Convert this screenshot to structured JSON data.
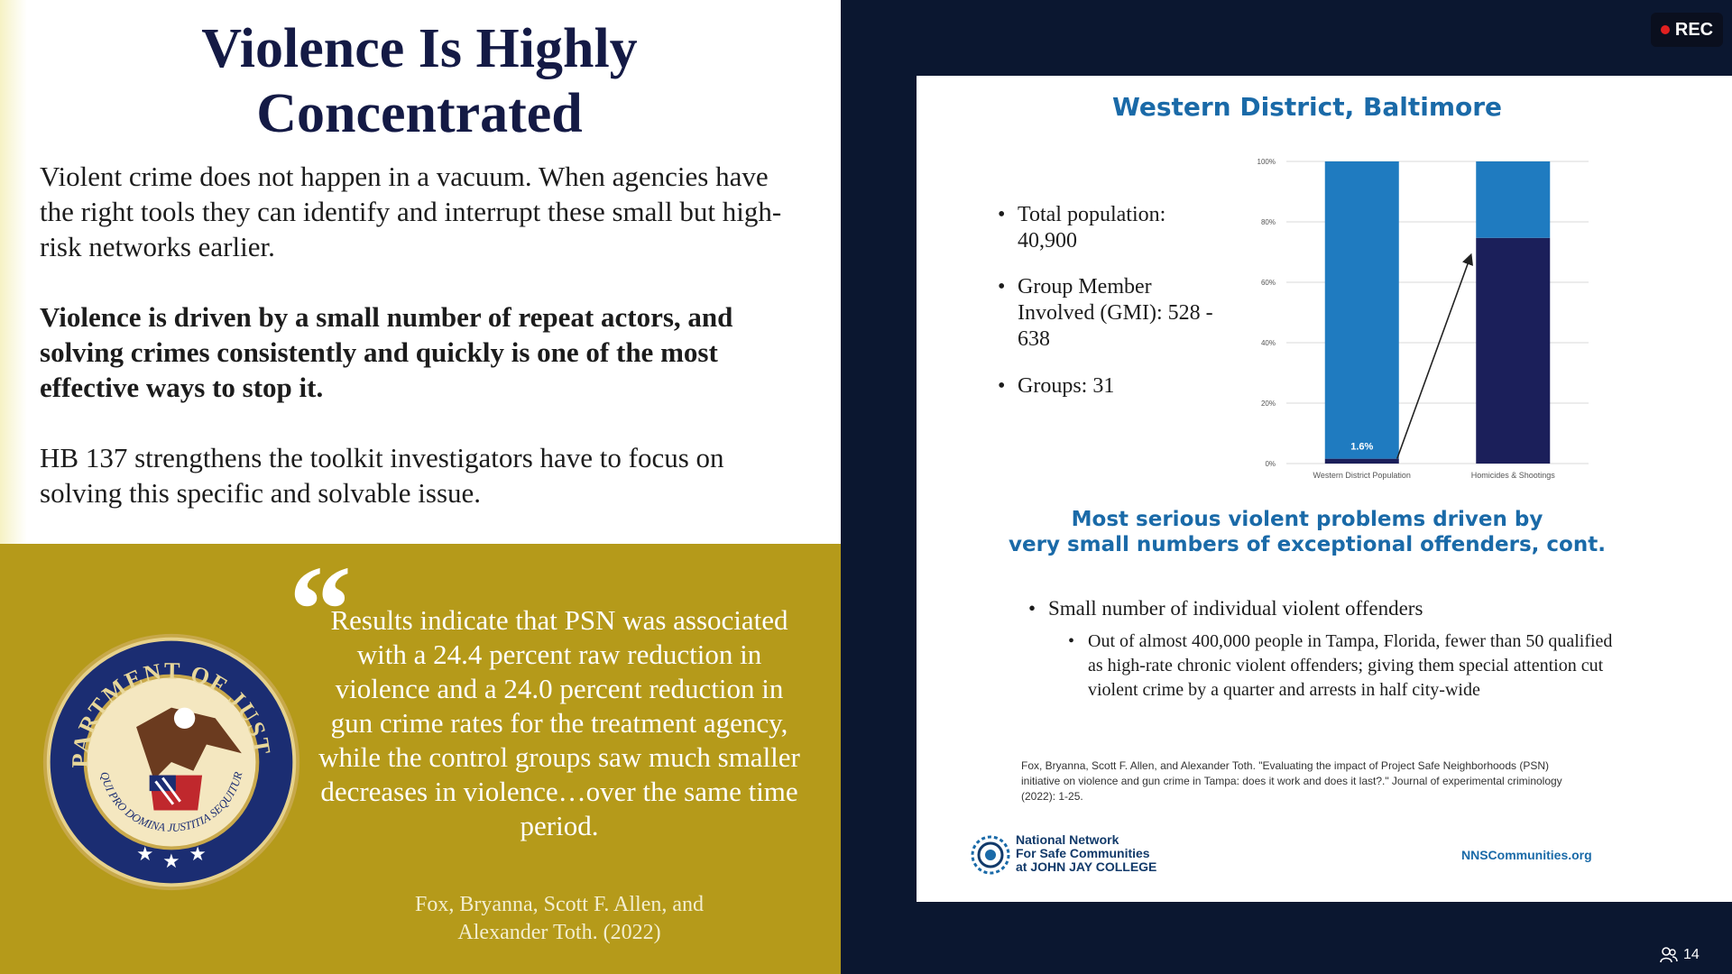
{
  "left_slide": {
    "title": "Violence Is Highly Concentrated",
    "paragraph1": "Violent crime does not happen in a vacuum. When agencies have the right tools they can identify and interrupt these small but high-risk networks earlier.",
    "paragraph2": "Violence is driven by a small number of repeat actors, and solving crimes consistently and quickly is one of the most effective ways to stop it.",
    "paragraph3": "HB 137 strengthens the toolkit investigators have to focus on solving this specific and solvable issue.",
    "quote_mark": "“",
    "quote": "Results indicate that PSN was associated with a 24.4 percent raw reduction in violence and a 24.0 percent reduction in gun crime rates for the treatment agency, while the control groups saw much smaller decreases in violence…over the same time period.",
    "citation": "Fox, Bryanna, Scott F. Allen, and Alexander Toth. (2022)",
    "seal_text": "DEPARTMENT OF JUSTICE",
    "seal_motto": "QUI PRO DOMINA JUSTITIA SEQUITUR"
  },
  "recording": {
    "label": "REC"
  },
  "right_slide": {
    "title": "Western District, Baltimore",
    "stats": [
      "Total population: 40,900",
      "Group Member Involved (GMI): 528 - 638",
      "Groups: 31"
    ],
    "subtitle_line1": "Most serious violent problems driven by",
    "subtitle_line2": "very small numbers of exceptional offenders, cont.",
    "bullet_main": "Small number of individual violent offenders",
    "bullet_sub": "Out of almost 400,000 people in Tampa, Florida, fewer than 50 qualified as high-rate chronic violent offenders; giving them special attention cut violent crime by a quarter and arrests in half city-wide",
    "reference": "Fox, Bryanna, Scott F. Allen, and Alexander Toth. \"Evaluating the impact of Project Safe Neighborhoods (PSN) initiative on violence and gun crime in Tampa: does it work and does it last?.\" Journal of experimental criminology (2022): 1-25.",
    "logo_line1": "National Network",
    "logo_line2": "For Safe Communities",
    "logo_line3": "at JOHN JAY COLLEGE",
    "url": "NNSCommunities.org"
  },
  "participants": {
    "count": "14"
  },
  "chart_data": {
    "type": "bar",
    "stacked": true,
    "categories": [
      "Western District Population",
      "Homicides & Shootings"
    ],
    "series": [
      {
        "values": [
          1.6,
          74.7
        ],
        "color": "#1b1f5a"
      },
      {
        "values": [
          98.4,
          25.3
        ],
        "color": "#1f7bc0"
      }
    ],
    "data_labels": [
      "1.6%",
      "74.7%"
    ],
    "ylim": [
      0,
      100
    ],
    "yticks": [
      "0%",
      "20%",
      "40%",
      "60%",
      "80%",
      "100%"
    ],
    "grid": true,
    "annotation": "arrow from 1.6% to 74.7%"
  }
}
